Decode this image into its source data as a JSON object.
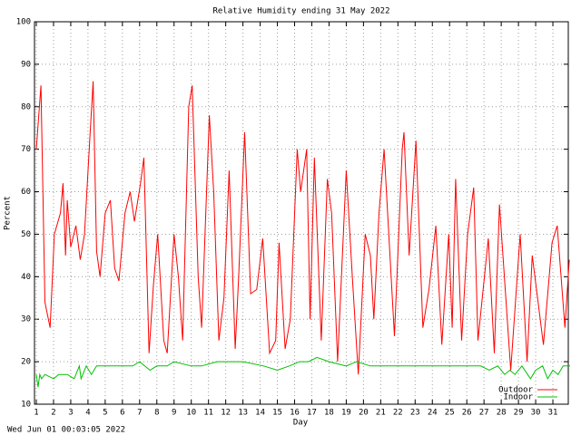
{
  "chart_data": {
    "type": "line",
    "title": "Relative Humidity ending 31 May 2022",
    "xlabel": "Day",
    "ylabel": "Percent",
    "footer": "Wed Jun 01 00:03:05 2022",
    "xlim": [
      1,
      32
    ],
    "ylim": [
      10,
      100
    ],
    "xticks": [
      1,
      2,
      3,
      4,
      5,
      6,
      7,
      8,
      9,
      10,
      11,
      12,
      13,
      14,
      15,
      16,
      17,
      18,
      19,
      20,
      21,
      22,
      23,
      24,
      25,
      26,
      27,
      28,
      29,
      30,
      31
    ],
    "yticks": [
      10,
      20,
      30,
      40,
      50,
      60,
      70,
      80,
      90,
      100
    ],
    "grid": true,
    "legend": "lower right",
    "series": [
      {
        "name": "Outdoor",
        "color": "#ff0000",
        "x": [
          1,
          1.27,
          1.5,
          1.8,
          2.05,
          2.4,
          2.55,
          2.7,
          2.8,
          3.0,
          3.3,
          3.55,
          3.8,
          4.1,
          4.3,
          4.5,
          4.7,
          5.0,
          5.3,
          5.55,
          5.8,
          6.15,
          6.45,
          6.7,
          7.05,
          7.25,
          7.55,
          7.8,
          8.05,
          8.4,
          8.6,
          9.0,
          9.25,
          9.5,
          9.85,
          10.05,
          10.4,
          10.6,
          11.05,
          11.3,
          11.6,
          11.9,
          12.2,
          12.55,
          12.75,
          13.1,
          13.45,
          13.8,
          14.15,
          14.55,
          14.9,
          15.1,
          15.45,
          15.75,
          16.15,
          16.35,
          16.7,
          16.9,
          17.15,
          17.55,
          17.9,
          18.15,
          18.5,
          19.0,
          19.35,
          19.7,
          20.1,
          20.4,
          20.6,
          20.9,
          21.2,
          21.8,
          22.25,
          22.35,
          22.65,
          23.05,
          23.45,
          23.8,
          24.2,
          24.55,
          24.95,
          25.15,
          25.35,
          25.7,
          26.05,
          26.4,
          26.65,
          27.25,
          27.6,
          27.9,
          28.55,
          29.1,
          29.5,
          29.8,
          30.45,
          30.95,
          31.25,
          31.7,
          31.95
        ],
        "values": [
          70,
          85,
          34,
          28,
          50,
          55,
          62,
          45,
          58,
          47,
          52,
          44,
          50,
          72,
          86,
          46,
          40,
          55,
          58,
          42,
          39,
          55,
          60,
          53,
          62,
          68,
          22,
          38,
          50,
          25,
          22,
          50,
          40,
          25,
          80,
          85,
          40,
          28,
          78,
          60,
          25,
          35,
          65,
          23,
          40,
          74,
          36,
          37,
          49,
          22,
          25,
          48,
          23,
          30,
          70,
          60,
          70,
          30,
          68,
          25,
          63,
          55,
          20,
          65,
          40,
          17,
          50,
          45,
          30,
          55,
          70,
          26,
          70,
          74,
          45,
          72,
          28,
          37,
          52,
          24,
          50,
          28,
          63,
          25,
          50,
          61,
          25,
          49,
          22,
          57,
          18,
          50,
          20,
          45,
          24,
          48,
          52,
          28,
          44
        ]
      },
      {
        "name": "Indoor",
        "color": "#00c000",
        "x": [
          1,
          1.1,
          1.2,
          1.3,
          1.5,
          2.0,
          2.3,
          2.8,
          3.2,
          3.5,
          3.6,
          3.9,
          4.2,
          4.5,
          5.5,
          6.6,
          7.0,
          7.6,
          8.0,
          8.6,
          9.0,
          10.0,
          10.6,
          11.5,
          12.2,
          13.0,
          14.2,
          15.0,
          15.7,
          16.3,
          16.8,
          17.3,
          18.0,
          19.0,
          19.6,
          20.4,
          21.0,
          22.0,
          23.0,
          24.0,
          25.0,
          26.0,
          26.8,
          27.3,
          27.8,
          28.2,
          28.5,
          28.8,
          29.2,
          29.7,
          30.0,
          30.4,
          30.7,
          31.0,
          31.3,
          31.6,
          32
        ],
        "values": [
          17,
          14,
          17,
          16,
          17,
          16,
          17,
          17,
          16,
          19,
          16,
          19,
          17,
          19,
          19,
          19,
          20,
          18,
          19,
          19,
          20,
          19,
          19,
          20,
          20,
          20,
          19,
          18,
          19,
          20,
          20,
          21,
          20,
          19,
          20,
          19,
          19,
          19,
          19,
          19,
          19,
          19,
          19,
          18,
          19,
          17,
          18,
          17,
          19,
          16,
          18,
          19,
          16,
          18,
          17,
          19,
          19
        ]
      }
    ]
  }
}
